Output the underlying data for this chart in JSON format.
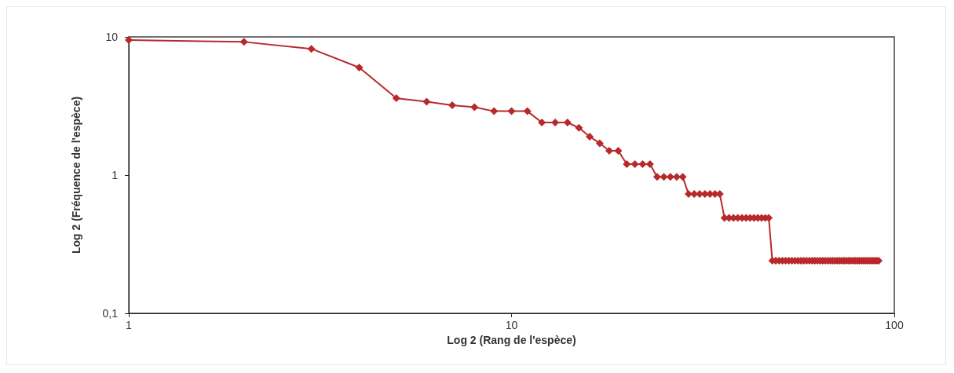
{
  "chart_data": {
    "type": "line",
    "xlabel": "Log 2 (Rang de l'espèce)",
    "ylabel": "Log 2 (Fréquence de l'espèce)",
    "log": "xy",
    "x": [
      1,
      2,
      3,
      4,
      5,
      6,
      7,
      8,
      9,
      10,
      11,
      12,
      13,
      14,
      15,
      16,
      17,
      18,
      19,
      20,
      21,
      22,
      23,
      24,
      25,
      26,
      27,
      28,
      29,
      30,
      31,
      32,
      33,
      34,
      35,
      36,
      37,
      38,
      39,
      40,
      41,
      42,
      43,
      44,
      45,
      46,
      47,
      48,
      49,
      50,
      51,
      52,
      53,
      54,
      55,
      56,
      57,
      58,
      59,
      60,
      61,
      62,
      63,
      64,
      65,
      66,
      67,
      68,
      69,
      70,
      71,
      72,
      73,
      74,
      75,
      76,
      77,
      78,
      79,
      80,
      81,
      82,
      83,
      84,
      85,
      86,
      87,
      88,
      89,
      90,
      91
    ],
    "series": [
      {
        "color": "#b8292b",
        "values": [
          9.5,
          9.2,
          8.2,
          6.0,
          3.6,
          3.4,
          3.2,
          3.1,
          2.9,
          2.9,
          2.9,
          2.4,
          2.4,
          2.4,
          2.2,
          1.9,
          1.7,
          1.5,
          1.5,
          1.2,
          1.2,
          1.2,
          1.2,
          0.97,
          0.97,
          0.97,
          0.97,
          0.97,
          0.73,
          0.73,
          0.73,
          0.73,
          0.73,
          0.73,
          0.73,
          0.49,
          0.49,
          0.49,
          0.49,
          0.49,
          0.49,
          0.49,
          0.49,
          0.49,
          0.49,
          0.49,
          0.49,
          0.24,
          0.24,
          0.24,
          0.24,
          0.24,
          0.24,
          0.24,
          0.24,
          0.24,
          0.24,
          0.24,
          0.24,
          0.24,
          0.24,
          0.24,
          0.24,
          0.24,
          0.24,
          0.24,
          0.24,
          0.24,
          0.24,
          0.24,
          0.24,
          0.24,
          0.24,
          0.24,
          0.24,
          0.24,
          0.24,
          0.24,
          0.24,
          0.24,
          0.24,
          0.24,
          0.24,
          0.24,
          0.24,
          0.24,
          0.24,
          0.24,
          0.24,
          0.24,
          0.24
        ]
      }
    ],
    "xlim": [
      1,
      100
    ],
    "xticks": [
      1,
      10,
      100
    ],
    "ylim": [
      0.1,
      10
    ],
    "yticks": [
      {
        "value": 0.1,
        "label": "0,1"
      },
      1,
      10
    ],
    "marker": "diamond",
    "line_style": "solid"
  }
}
